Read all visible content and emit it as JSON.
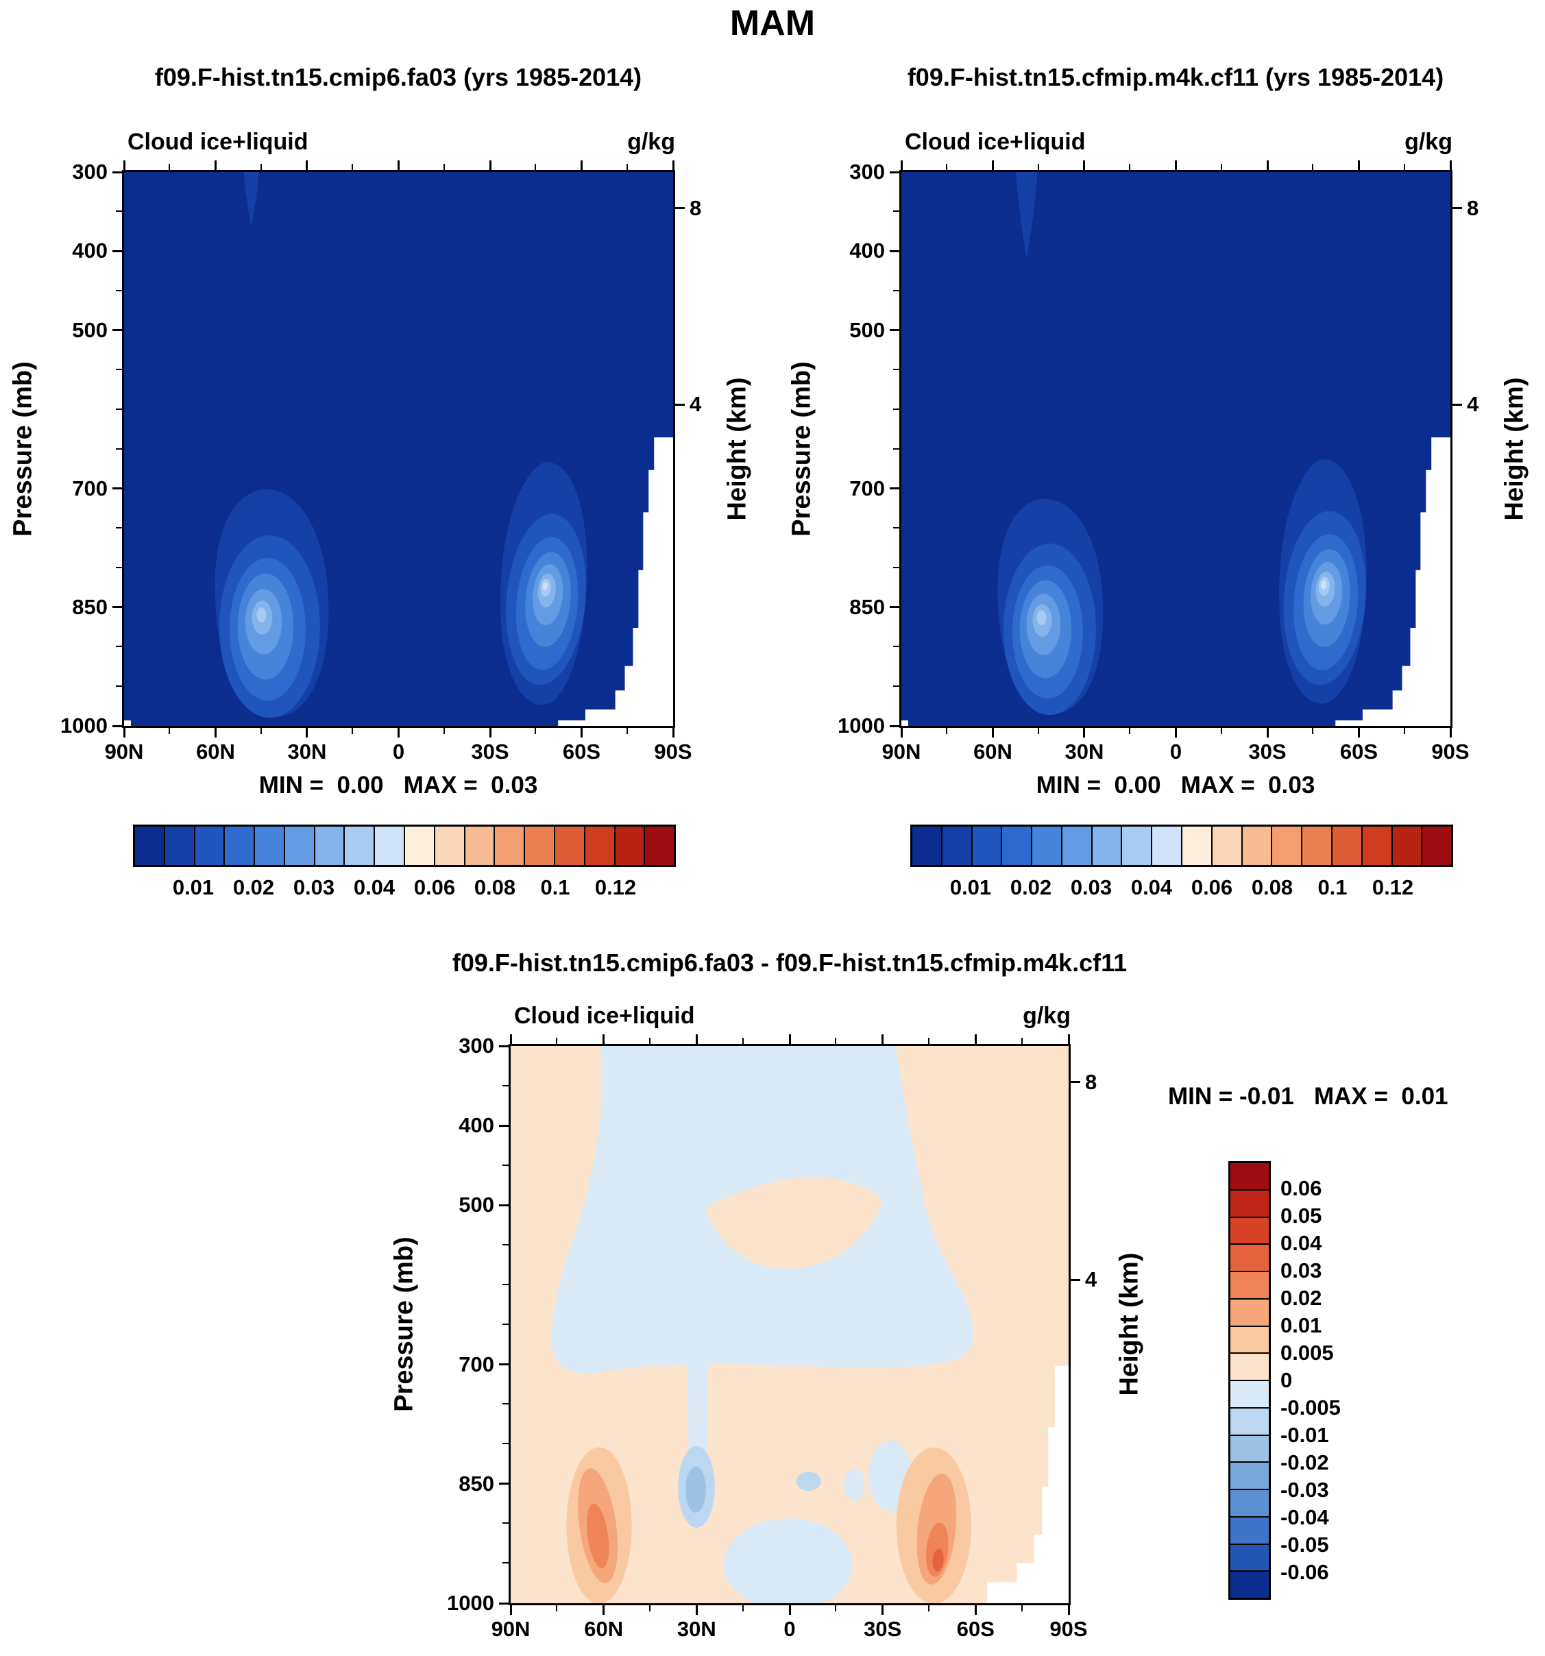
{
  "figure_title": "MAM",
  "palette_main": [
    "#0a2d8f",
    "#1440a8",
    "#1f55bd",
    "#2f6bce",
    "#4684d9",
    "#639ce3",
    "#85b4ec",
    "#a8cbf2",
    "#cfe2f8",
    "#fdeede",
    "#fbd6b9",
    "#f7bb93",
    "#f29e70",
    "#ea7f51",
    "#df5d36",
    "#cf3d21",
    "#b82414",
    "#9c0c10"
  ],
  "palette_diff": [
    "#9e0d12",
    "#c0261a",
    "#d84327",
    "#e4633c",
    "#ee8458",
    "#f5a67b",
    "#f9c9a2",
    "#fbe3cc",
    "#d9e9f6",
    "#bcd7f0",
    "#9cc2e6",
    "#79a9db",
    "#5c90d2",
    "#3f74c8",
    "#2456b4",
    "#0a2d8f"
  ],
  "panels": [
    {
      "title": "f09.F-hist.tn15.cmip6.fa03 (yrs 1985-2014)",
      "field_label": "Cloud ice+liquid",
      "units": "g/kg",
      "y_axis_label": "Pressure (mb)",
      "y2_axis_label": "Height (km)",
      "yticks": [
        "300",
        "400",
        "500",
        "700",
        "850",
        "1000"
      ],
      "y2ticks": [
        "8",
        "4"
      ],
      "xticks": [
        "90N",
        "60N",
        "30N",
        "0",
        "30S",
        "60S",
        "90S"
      ],
      "stats": "MIN =  0.00   MAX =  0.03",
      "colorbar_labels": [
        "0.01",
        "0.02",
        "0.03",
        "0.04",
        "0.06",
        "0.08",
        "0.1",
        "0.12"
      ]
    },
    {
      "title": "f09.F-hist.tn15.cfmip.m4k.cf11 (yrs 1985-2014)",
      "field_label": "Cloud ice+liquid",
      "units": "g/kg",
      "y_axis_label": "Pressure (mb)",
      "y2_axis_label": "Height (km)",
      "yticks": [
        "300",
        "400",
        "500",
        "700",
        "850",
        "1000"
      ],
      "y2ticks": [
        "8",
        "4"
      ],
      "xticks": [
        "90N",
        "60N",
        "30N",
        "0",
        "30S",
        "60S",
        "90S"
      ],
      "stats": "MIN =  0.00   MAX =  0.03",
      "colorbar_labels": [
        "0.01",
        "0.02",
        "0.03",
        "0.04",
        "0.06",
        "0.08",
        "0.1",
        "0.12"
      ]
    },
    {
      "title": "f09.F-hist.tn15.cmip6.fa03 - f09.F-hist.tn15.cfmip.m4k.cf11",
      "field_label": "Cloud ice+liquid",
      "units": "g/kg",
      "y_axis_label": "Pressure (mb)",
      "y2_axis_label": "Height (km)",
      "yticks": [
        "300",
        "400",
        "500",
        "700",
        "850",
        "1000"
      ],
      "y2ticks": [
        "8",
        "4"
      ],
      "xticks": [
        "90N",
        "60N",
        "30N",
        "0",
        "30S",
        "60S",
        "90S"
      ],
      "stats": "MIN = -0.01   MAX =  0.01",
      "colorbar_labels": [
        "0.06",
        "0.05",
        "0.04",
        "0.03",
        "0.02",
        "0.01",
        "0.005",
        "0",
        "-0.005",
        "-0.01",
        "-0.02",
        "-0.03",
        "-0.04",
        "-0.05",
        "-0.06"
      ]
    }
  ],
  "chart_data": [
    {
      "type": "heatmap",
      "subtype": "filled_contour_latitude_pressure",
      "title": "f09.F-hist.tn15.cmip6.fa03 (yrs 1985-2014)",
      "variable": "Cloud ice+liquid",
      "units": "g/kg",
      "x_axis": {
        "ticks": [
          "90N",
          "60N",
          "30N",
          "0",
          "30S",
          "60S",
          "90S"
        ],
        "range": [
          "90N",
          "90S"
        ]
      },
      "y_axis": {
        "label": "Pressure (mb)",
        "ticks": [
          300,
          400,
          500,
          700,
          850,
          1000
        ],
        "range": [
          300,
          1000
        ],
        "scale": "linear",
        "inverted": true
      },
      "y2_axis": {
        "label": "Height (km)",
        "ticks": [
          8,
          4
        ]
      },
      "min": 0.0,
      "max": 0.03,
      "contour_levels": [
        0.005,
        0.01,
        0.015,
        0.02,
        0.025,
        0.03,
        0.035,
        0.04,
        0.05,
        0.06,
        0.07,
        0.08,
        0.09,
        0.1,
        0.11,
        0.12,
        0.13
      ],
      "colorbar_tick_values": [
        0.01,
        0.02,
        0.03,
        0.04,
        0.06,
        0.08,
        0.1,
        0.12
      ],
      "legend_position": "horizontal bar below panel",
      "grid": false,
      "features": [
        {
          "feature": "background",
          "value_g_per_kg": "< 0.005 over most of section (dark navy)"
        },
        {
          "feature": "low-level cloud maximum",
          "lat": "35N-55N",
          "pressure_mb": "720-1000",
          "peak_pressure_mb": 860,
          "peak_value_g_per_kg": 0.03
        },
        {
          "feature": "low-level cloud maximum",
          "lat": "35S-60S",
          "pressure_mb": "680-1000",
          "peak_pressure_mb": 840,
          "peak_value_g_per_kg": 0.03
        },
        {
          "feature": "faint upper-level plume",
          "lat": "~48N",
          "pressure_mb": "300-350",
          "value_g_per_kg": "~0.005"
        },
        {
          "feature": "white masked topography (Antarctica)",
          "lat": "75S-90S",
          "below_pressure_mb": 650
        }
      ]
    },
    {
      "type": "heatmap",
      "subtype": "filled_contour_latitude_pressure",
      "title": "f09.F-hist.tn15.cfmip.m4k.cf11 (yrs 1985-2014)",
      "variable": "Cloud ice+liquid",
      "units": "g/kg",
      "x_axis": {
        "ticks": [
          "90N",
          "60N",
          "30N",
          "0",
          "30S",
          "60S",
          "90S"
        ],
        "range": [
          "90N",
          "90S"
        ]
      },
      "y_axis": {
        "label": "Pressure (mb)",
        "ticks": [
          300,
          400,
          500,
          700,
          850,
          1000
        ],
        "range": [
          300,
          1000
        ],
        "scale": "linear",
        "inverted": true
      },
      "y2_axis": {
        "label": "Height (km)",
        "ticks": [
          8,
          4
        ]
      },
      "min": 0.0,
      "max": 0.03,
      "contour_levels": [
        0.005,
        0.01,
        0.015,
        0.02,
        0.025,
        0.03,
        0.035,
        0.04,
        0.05,
        0.06,
        0.07,
        0.08,
        0.09,
        0.1,
        0.11,
        0.12,
        0.13
      ],
      "colorbar_tick_values": [
        0.01,
        0.02,
        0.03,
        0.04,
        0.06,
        0.08,
        0.1,
        0.12
      ],
      "legend_position": "horizontal bar below panel",
      "grid": false,
      "features": [
        {
          "feature": "background",
          "value_g_per_kg": "< 0.005 over most of section (dark navy)"
        },
        {
          "feature": "low-level cloud maximum",
          "lat": "35N-50N",
          "pressure_mb": "740-1000",
          "peak_pressure_mb": 860,
          "peak_value_g_per_kg": 0.03
        },
        {
          "feature": "low-level cloud maximum",
          "lat": "35S-60S",
          "pressure_mb": "680-1000",
          "peak_pressure_mb": 840,
          "peak_value_g_per_kg": 0.03
        },
        {
          "feature": "faint upper-level plume",
          "lat": "~48N",
          "pressure_mb": "300-360",
          "value_g_per_kg": "~0.005"
        },
        {
          "feature": "white masked topography (Antarctica)",
          "lat": "75S-90S",
          "below_pressure_mb": 650
        }
      ]
    },
    {
      "type": "heatmap",
      "subtype": "filled_contour_latitude_pressure_difference",
      "title": "f09.F-hist.tn15.cmip6.fa03 - f09.F-hist.tn15.cfmip.m4k.cf11",
      "variable": "Cloud ice+liquid difference",
      "units": "g/kg",
      "x_axis": {
        "ticks": [
          "90N",
          "60N",
          "30N",
          "0",
          "30S",
          "60S",
          "90S"
        ],
        "range": [
          "90N",
          "90S"
        ]
      },
      "y_axis": {
        "label": "Pressure (mb)",
        "ticks": [
          300,
          400,
          500,
          700,
          850,
          1000
        ],
        "range": [
          300,
          1000
        ],
        "scale": "linear",
        "inverted": true
      },
      "y2_axis": {
        "label": "Height (km)",
        "ticks": [
          8,
          4
        ]
      },
      "min": -0.01,
      "max": 0.01,
      "contour_levels": [
        -0.06,
        -0.05,
        -0.04,
        -0.03,
        -0.02,
        -0.01,
        -0.005,
        0,
        0.005,
        0.01,
        0.02,
        0.03,
        0.04,
        0.05,
        0.06
      ],
      "legend_position": "vertical bar right of panel",
      "grid": false,
      "features": [
        {
          "feature": "weak negative arch (0 to -0.005)",
          "description": "pale-blue dome over tropics 300-500 mb plus band near 600-700 mb from ~65N to ~55S"
        },
        {
          "feature": "weak positive background (0 to 0.005)",
          "description": "pale peach over polar flanks and most of lower troposphere"
        },
        {
          "feature": "negative anomaly",
          "lat": "~30N",
          "pressure_mb": "820-920",
          "approx_value_g_per_kg": "-0.01 to -0.02"
        },
        {
          "feature": "positive anomaly",
          "lat": "55N-65N",
          "pressure_mb": "850-1000",
          "approx_value_g_per_kg": "+0.01 to +0.02"
        },
        {
          "feature": "positive anomaly with warm core",
          "lat": "50S-60S",
          "pressure_mb": "870-1000",
          "approx_value_g_per_kg": "+0.01 to +0.03"
        },
        {
          "feature": "pale-blue negative patch",
          "lat": "10N-10S",
          "pressure_mb": "880-1000"
        },
        {
          "feature": "white masked topography (Antarctica)",
          "lat": "75S-90S",
          "below_pressure_mb": 700
        }
      ]
    }
  ]
}
